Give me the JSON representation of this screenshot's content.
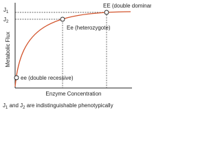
{
  "y_axis_levels": [
    {
      "base": "J",
      "subscript": "1"
    },
    {
      "base": "J",
      "subscript": "2"
    }
  ],
  "points": [
    {
      "label": "EE (double dominant)"
    },
    {
      "label": "Ee (heterozygote)"
    },
    {
      "label": "ee (double recessive)"
    }
  ],
  "y_axis_title": "Metabolic Flux",
  "x_axis_title": "Enzyme Concentration",
  "caption": [
    "J",
    "1",
    " and ",
    "J",
    "2",
    " are indistinguishable phenotypically"
  ]
}
